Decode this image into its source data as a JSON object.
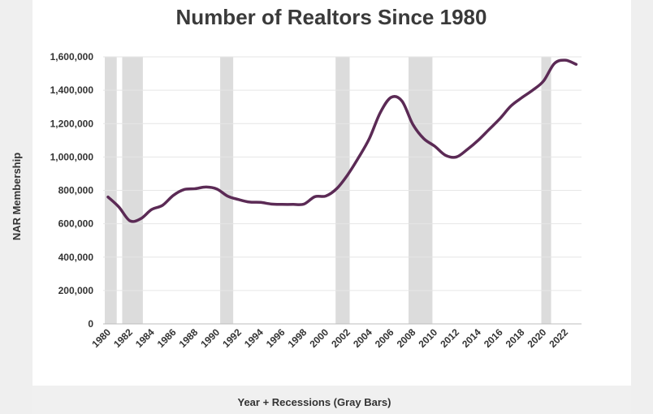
{
  "chart_data": {
    "type": "line",
    "title": "Number of Realtors Since 1980",
    "xlabel": "Year + Recessions (Gray Bars)",
    "ylabel": "NAR Membership",
    "ylim": [
      0,
      1600000
    ],
    "xlim": [
      1979.5,
      2023.5
    ],
    "grid": true,
    "y_ticks": [
      0,
      200000,
      400000,
      600000,
      800000,
      1000000,
      1200000,
      1400000,
      1600000
    ],
    "y_tick_labels": [
      "0",
      "200,000",
      "400,000",
      "600,000",
      "800,000",
      "1,000,000",
      "1,200,000",
      "1,400,000",
      "1,600,000"
    ],
    "x_ticks": [
      1980,
      1982,
      1984,
      1986,
      1988,
      1990,
      1992,
      1994,
      1996,
      1998,
      2000,
      2002,
      2004,
      2006,
      2008,
      2010,
      2012,
      2014,
      2016,
      2018,
      2020,
      2022
    ],
    "x_tick_labels": [
      "1980",
      "1982",
      "1984",
      "1986",
      "1988",
      "1990",
      "1992",
      "1994",
      "1996",
      "1998",
      "2000",
      "2002",
      "2004",
      "2006",
      "2008",
      "2010",
      "2012",
      "2014",
      "2016",
      "2018",
      "2020",
      "2022"
    ],
    "series": [
      {
        "name": "NAR Membership",
        "color": "#5b2a55",
        "x": [
          1980,
          1981,
          1982,
          1983,
          1984,
          1985,
          1986,
          1987,
          1988,
          1989,
          1990,
          1991,
          1992,
          1993,
          1994,
          1995,
          1996,
          1997,
          1998,
          1999,
          2000,
          2001,
          2002,
          2003,
          2004,
          2005,
          2006,
          2007,
          2008,
          2009,
          2010,
          2011,
          2012,
          2013,
          2014,
          2015,
          2016,
          2017,
          2018,
          2019,
          2020,
          2021,
          2022,
          2023
        ],
        "values": [
          760000,
          700000,
          618000,
          630000,
          685000,
          710000,
          770000,
          805000,
          810000,
          820000,
          808000,
          765000,
          745000,
          730000,
          728000,
          718000,
          716000,
          716000,
          718000,
          762000,
          766000,
          810000,
          892000,
          995000,
          1110000,
          1265000,
          1357000,
          1335000,
          1195000,
          1110000,
          1065000,
          1010000,
          1000000,
          1045000,
          1100000,
          1165000,
          1230000,
          1305000,
          1355000,
          1400000,
          1455000,
          1560000,
          1580000,
          1555000
        ]
      }
    ],
    "recessions": [
      {
        "start": 1980.0,
        "end": 1980.5
      },
      {
        "start": 1981.6,
        "end": 1982.9
      },
      {
        "start": 1990.6,
        "end": 1991.2
      },
      {
        "start": 2001.2,
        "end": 2001.9
      },
      {
        "start": 2007.9,
        "end": 2009.5
      },
      {
        "start": 2020.1,
        "end": 2020.4
      }
    ],
    "recession_color": "#dcdcdc",
    "grid_color": "#e6e6e6"
  }
}
